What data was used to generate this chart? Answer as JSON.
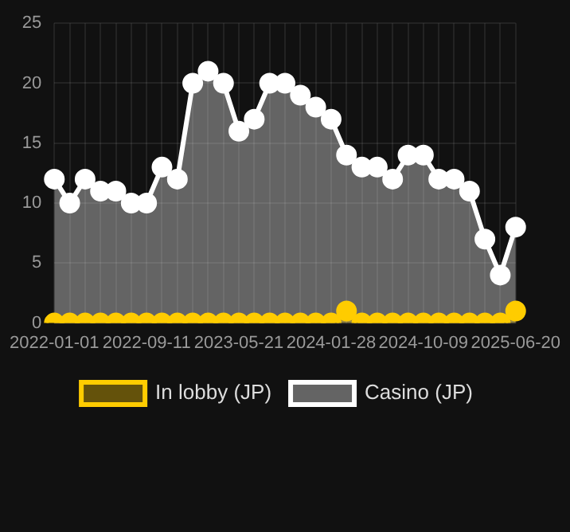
{
  "chart_data": {
    "type": "area",
    "categories": [
      "2022-01-01",
      null,
      null,
      null,
      null,
      null,
      "2022-09-11",
      null,
      null,
      null,
      null,
      null,
      "2023-05-21",
      null,
      null,
      null,
      null,
      null,
      "2024-01-28",
      null,
      null,
      null,
      null,
      null,
      "2024-10-09",
      null,
      null,
      null,
      null,
      null,
      "2025-06-20"
    ],
    "series": [
      {
        "name": "In lobby (JP)",
        "color": "#ffcc00",
        "values": [
          0,
          0,
          0,
          0,
          0,
          0,
          0,
          0,
          0,
          0,
          0,
          0,
          0,
          0,
          0,
          0,
          0,
          0,
          0,
          1,
          0,
          0,
          0,
          0,
          0,
          0,
          0,
          0,
          0,
          0,
          1
        ]
      },
      {
        "name": "Casino (JP)",
        "color": "#ffffff",
        "values": [
          12,
          10,
          12,
          11,
          11,
          10,
          10,
          13,
          12,
          20,
          21,
          20,
          16,
          17,
          20,
          20,
          19,
          18,
          17,
          14,
          13,
          13,
          12,
          14,
          14,
          12,
          12,
          11,
          7,
          4,
          8
        ]
      }
    ],
    "ylim": [
      0,
      25
    ],
    "yticks": [
      0,
      5,
      10,
      15,
      20,
      25
    ],
    "grid": true,
    "legend": "bottom",
    "marker": "circle"
  }
}
